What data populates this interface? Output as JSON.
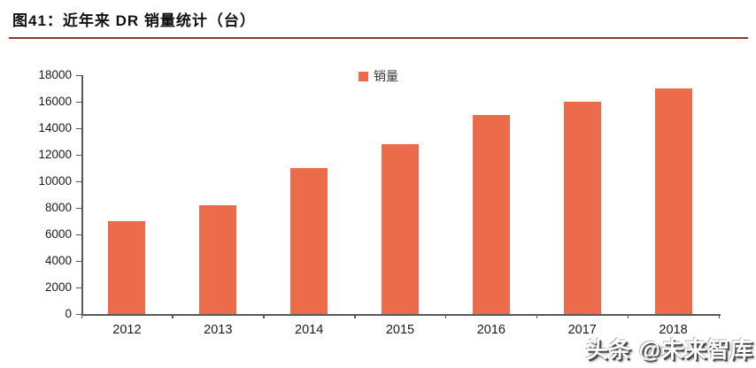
{
  "header": {
    "title": "图41：近年来 DR 销量统计（台）"
  },
  "watermark": {
    "text": "头条 @未来智库"
  },
  "colors": {
    "bar": "#EC6B4B",
    "title_rule": "#8C3C1E",
    "axis": "#595959"
  },
  "chart_data": {
    "type": "bar",
    "title": "图41：近年来 DR 销量统计（台）",
    "legend": "销量",
    "legend_position": "top-center",
    "categories": [
      "2012",
      "2013",
      "2014",
      "2015",
      "2016",
      "2017",
      "2018"
    ],
    "values": [
      7000,
      8200,
      11000,
      12800,
      15000,
      16000,
      17000
    ],
    "xlabel": "",
    "ylabel": "",
    "ylim": [
      0,
      18000
    ],
    "y_tick_step": 2000,
    "y_ticks": [
      0,
      2000,
      4000,
      6000,
      8000,
      10000,
      12000,
      14000,
      16000,
      18000
    ],
    "grid": false,
    "bar_color": "#EC6B4B",
    "axis_color": "#595959"
  }
}
